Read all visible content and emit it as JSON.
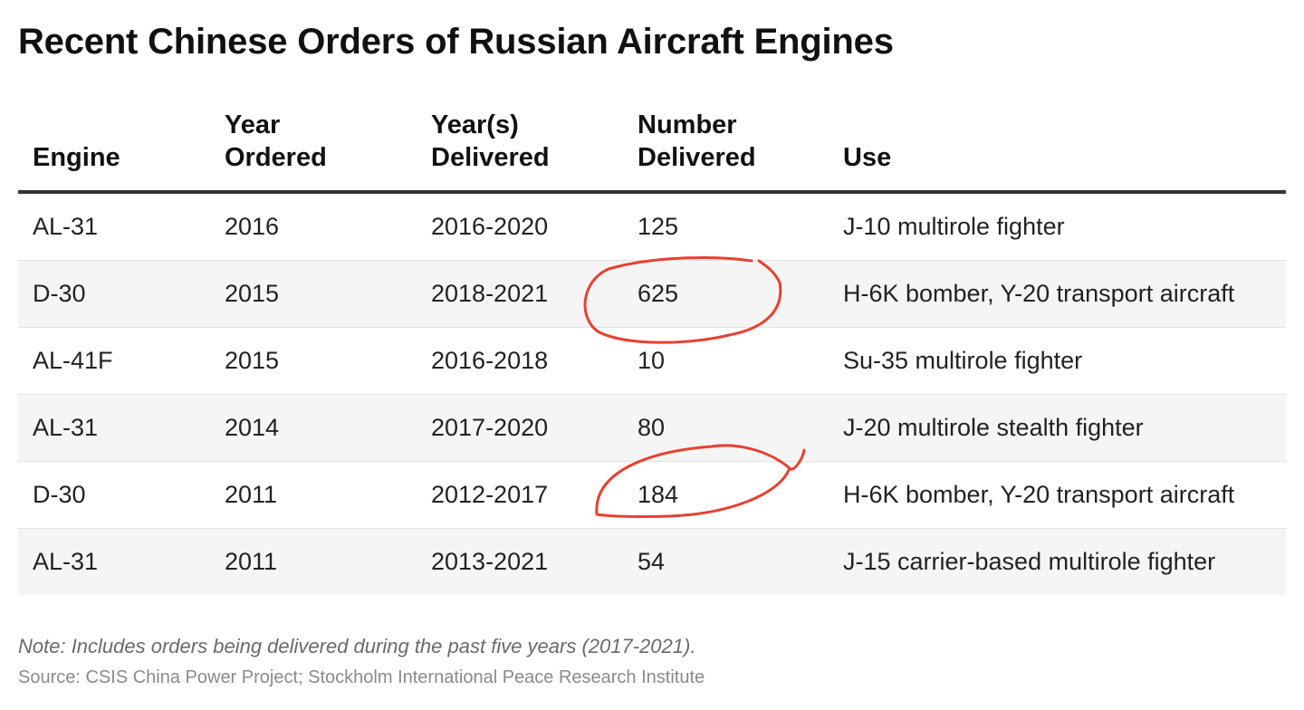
{
  "title": "Recent Chinese Orders of Russian Aircraft Engines",
  "note": "Note: Includes orders being delivered during the past five years (2017-2021).",
  "source": "Source: CSIS China Power Project; Stockholm International Peace Research Institute",
  "colors": {
    "annotation": "#e8402f",
    "header_rule": "#333333",
    "stripe": "#f5f5f5"
  },
  "chart_data": {
    "type": "table",
    "title": "Recent Chinese Orders of Russian Aircraft Engines",
    "columns": [
      "Engine",
      "Year\nOrdered",
      "Year(s)\nDelivered",
      "Number\nDelivered",
      "Use"
    ],
    "rows": [
      [
        "AL-31",
        "2016",
        "2016-2020",
        "125",
        "J-10 multirole fighter"
      ],
      [
        "D-30",
        "2015",
        "2018-2021",
        "625",
        "H-6K bomber, Y-20 transport aircraft"
      ],
      [
        "AL-41F",
        "2015",
        "2016-2018",
        "10",
        "Su-35 multirole fighter"
      ],
      [
        "AL-31",
        "2014",
        "2017-2020",
        "80",
        "J-20 multirole stealth fighter"
      ],
      [
        "D-30",
        "2011",
        "2012-2017",
        "184",
        "H-6K bomber, Y-20 transport aircraft"
      ],
      [
        "AL-31",
        "2011",
        "2013-2021",
        "54",
        "J-15 carrier-based multirole fighter"
      ]
    ],
    "annotations": [
      {
        "type": "hand-drawn-circle",
        "row": 1,
        "column": 3
      },
      {
        "type": "hand-drawn-underline-arc",
        "row": 4,
        "column": 3
      }
    ]
  }
}
